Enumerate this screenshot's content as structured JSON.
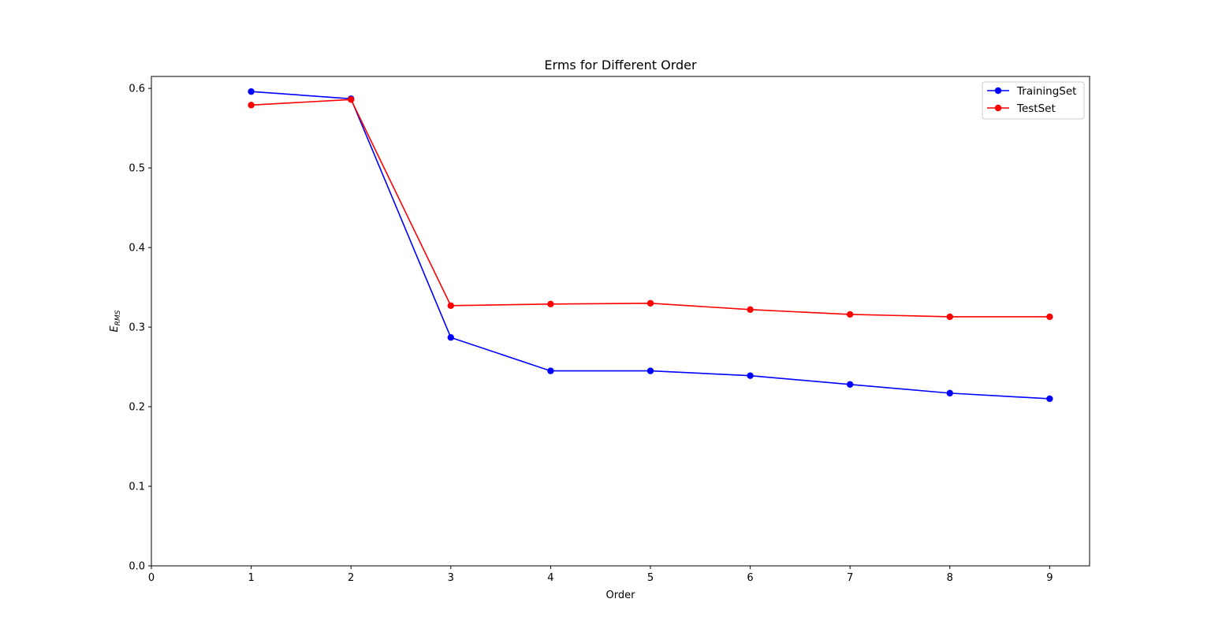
{
  "chart_data": {
    "type": "line",
    "title": "Erms for Different Order",
    "xlabel": "Order",
    "ylabel_main": "E",
    "ylabel_sub": "RMS",
    "xlim": [
      0,
      9.4
    ],
    "ylim": [
      0,
      0.615
    ],
    "xticks": [
      0,
      1,
      2,
      3,
      4,
      5,
      6,
      7,
      8,
      9
    ],
    "yticks": [
      0.0,
      0.1,
      0.2,
      0.3,
      0.4,
      0.5,
      0.6
    ],
    "grid": false,
    "legend_position": "top-right",
    "x": [
      1,
      2,
      3,
      4,
      5,
      6,
      7,
      8,
      9
    ],
    "series": [
      {
        "name": "TrainingSet",
        "color": "#0000ff",
        "marker": "circle",
        "values": [
          0.596,
          0.587,
          0.287,
          0.245,
          0.245,
          0.239,
          0.228,
          0.217,
          0.21
        ]
      },
      {
        "name": "TestSet",
        "color": "#ff0000",
        "marker": "circle",
        "values": [
          0.579,
          0.586,
          0.327,
          0.329,
          0.33,
          0.322,
          0.316,
          0.313,
          0.313
        ]
      }
    ]
  }
}
